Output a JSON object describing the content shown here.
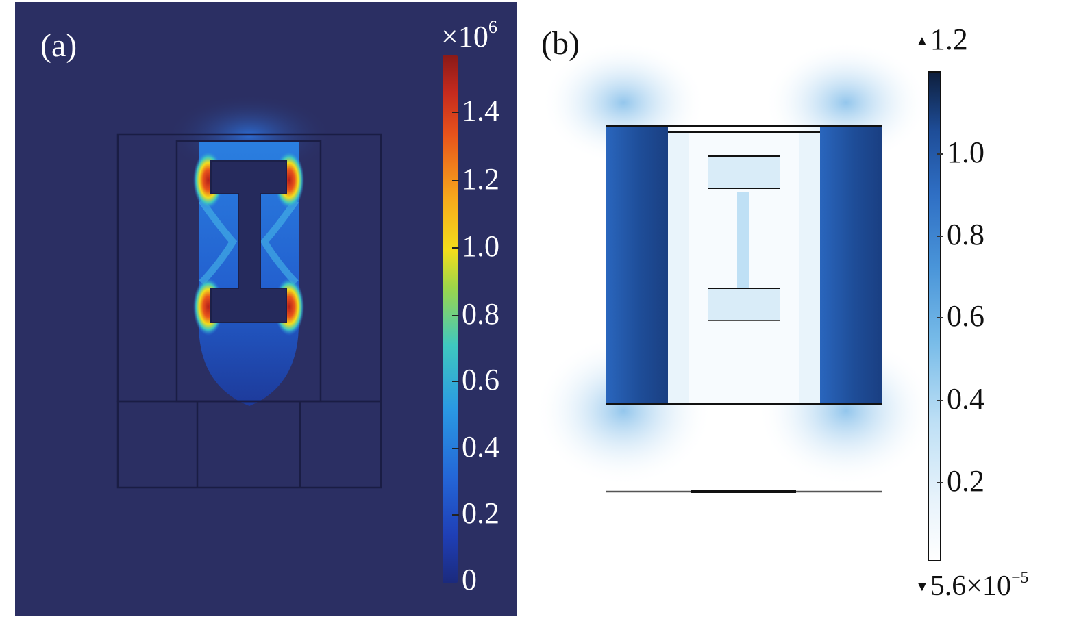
{
  "panel_a": {
    "label": "(a)",
    "colorbar": {
      "exponent_prefix": "×10",
      "exponent_power": "6",
      "ticks": [
        "1.4",
        "1.2",
        "1.0",
        "0.8",
        "0.6",
        "0.4",
        "0.2",
        "0"
      ],
      "tick_values": [
        1.4,
        1.2,
        1.0,
        0.8,
        0.6,
        0.4,
        0.2,
        0
      ],
      "range": [
        0,
        1.55
      ],
      "colormap": "rainbow"
    },
    "colors": {
      "background": "#2b2f63",
      "hot": "#c52a1e",
      "warm": "#f3dd1c",
      "mid": "#3fc8c0",
      "cool": "#2466d7"
    }
  },
  "panel_b": {
    "label": "(b)",
    "colorbar": {
      "max_label": "1.2",
      "min_label_base": "5.6×10",
      "min_label_power": "−5",
      "ticks": [
        "1.0",
        "0.8",
        "0.6",
        "0.4",
        "0.2"
      ],
      "tick_values": [
        1.0,
        0.8,
        0.6,
        0.4,
        0.2
      ],
      "range": [
        5.6e-05,
        1.2
      ],
      "colormap": "white-to-dark-blue"
    },
    "colors": {
      "dark": "#1e4d98",
      "mid": "#4a95d9",
      "light": "#d7ebf8",
      "outline": "#111111"
    }
  }
}
